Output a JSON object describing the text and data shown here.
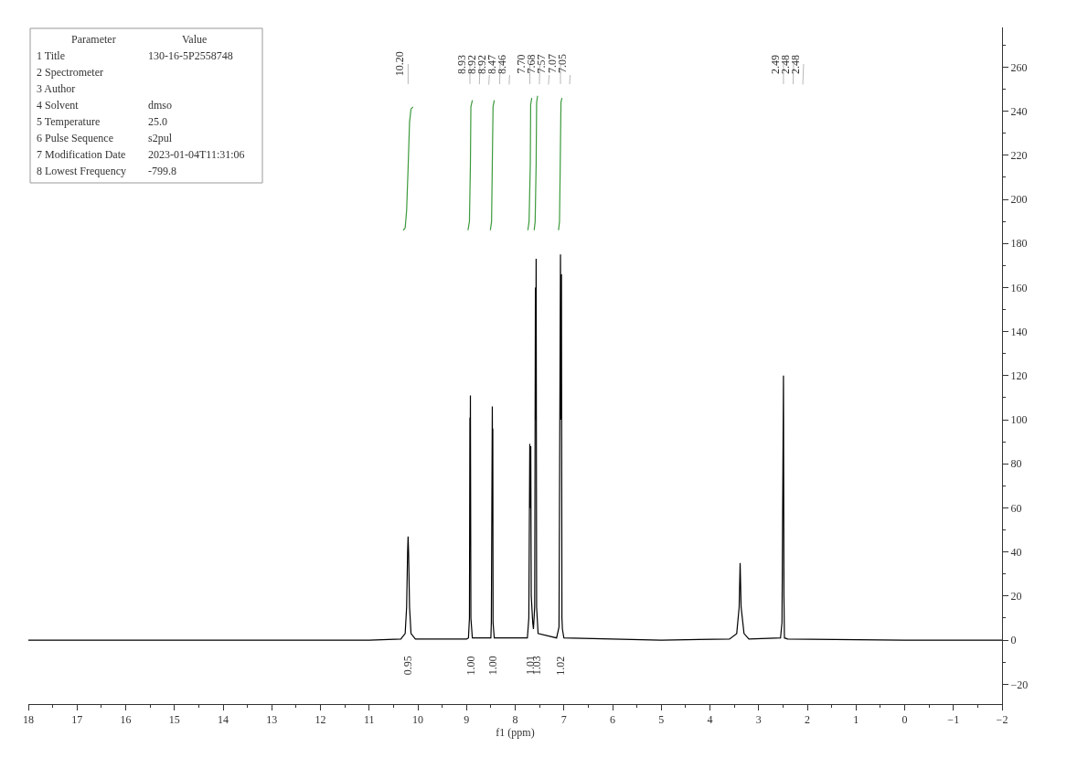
{
  "chart_data": {
    "type": "line",
    "xlabel": "f1 (ppm)",
    "xlim": [
      18,
      -2
    ],
    "xticks": [
      18,
      17,
      16,
      15,
      14,
      13,
      12,
      11,
      10,
      9,
      8,
      7,
      6,
      5,
      4,
      3,
      2,
      1,
      0,
      -1,
      -2
    ],
    "ylim": [
      -29,
      278
    ],
    "yticks": [
      -20,
      0,
      20,
      40,
      60,
      80,
      100,
      120,
      140,
      160,
      180,
      200,
      220,
      240,
      260
    ],
    "grid": false,
    "marker": "none",
    "line_style": "solid",
    "series": [
      {
        "color": "#000000",
        "x": [
          18,
          14,
          11,
          10.35,
          10.26,
          10.23,
          10.21,
          10.2,
          10.19,
          10.17,
          10.14,
          10.05,
          9,
          8.96,
          8.94,
          8.93,
          8.925,
          8.92,
          8.91,
          8.88,
          8.5,
          8.49,
          8.47,
          8.465,
          8.46,
          8.455,
          8.43,
          7.75,
          7.72,
          7.7,
          7.69,
          7.68,
          7.67,
          7.64,
          7.625,
          7.6,
          7.585,
          7.578,
          7.57,
          7.56,
          7.53,
          7.15,
          7.1,
          7.07,
          7.06,
          7.05,
          7.04,
          7.03,
          7,
          5,
          3.6,
          3.45,
          3.4,
          3.38,
          3.36,
          3.3,
          3.2,
          2.55,
          2.52,
          2.49,
          2.48,
          2.47,
          2.4,
          0,
          -2
        ],
        "values": [
          0,
          0,
          0,
          0.5,
          3,
          15,
          40,
          47,
          40,
          15,
          3,
          0.5,
          0.5,
          1,
          10,
          101,
          80,
          111,
          10,
          1,
          1,
          8,
          106,
          70,
          96,
          8,
          1,
          1,
          10,
          89,
          60,
          88,
          20,
          8,
          5,
          15,
          160,
          100,
          173,
          15,
          3,
          1,
          6,
          175,
          100,
          166,
          10,
          5,
          1,
          0,
          0.5,
          3,
          15,
          35,
          15,
          3,
          0.5,
          1,
          8,
          120,
          20,
          1,
          0.5,
          0,
          0
        ]
      },
      {
        "color": "#3c9a3c",
        "x": [
          10.3,
          10.26,
          10.23,
          10.2,
          10.17,
          10.14,
          10.1
        ],
        "values": [
          186,
          187,
          195,
          214,
          235,
          241,
          242
        ]
      },
      {
        "color": "#3c9a3c",
        "x": [
          8.97,
          8.94,
          8.92,
          8.91,
          8.88
        ],
        "values": [
          186,
          190,
          216,
          242,
          245
        ]
      },
      {
        "color": "#3c9a3c",
        "x": [
          8.51,
          8.485,
          8.47,
          8.455,
          8.43
        ],
        "values": [
          186,
          190,
          216,
          242,
          245
        ]
      },
      {
        "color": "#3c9a3c",
        "x": [
          7.74,
          7.715,
          7.69,
          7.682,
          7.66
        ],
        "values": [
          186,
          190,
          216,
          243,
          246
        ]
      },
      {
        "color": "#3c9a3c",
        "x": [
          7.61,
          7.59,
          7.57,
          7.56,
          7.54
        ],
        "values": [
          186,
          190,
          216,
          244,
          247
        ]
      },
      {
        "color": "#3c9a3c",
        "x": [
          7.11,
          7.09,
          7.075,
          7.06,
          7.04
        ],
        "values": [
          186,
          190,
          216,
          244,
          246
        ]
      }
    ],
    "annotations": [
      {
        "text": "10.20",
        "x": 10.2,
        "y": 47
      },
      {
        "text": "8.93",
        "x": 8.93,
        "y": 101
      },
      {
        "text": "8.92",
        "x": 8.92,
        "y": 111
      },
      {
        "text": "8.92",
        "x": 8.92,
        "y": 111
      },
      {
        "text": "8.47",
        "x": 8.47,
        "y": 106
      },
      {
        "text": "8.46",
        "x": 8.46,
        "y": 96
      },
      {
        "text": "7.70",
        "x": 7.7,
        "y": 89
      },
      {
        "text": "7.68",
        "x": 7.68,
        "y": 88
      },
      {
        "text": "7.57",
        "x": 7.57,
        "y": 173
      },
      {
        "text": "7.07",
        "x": 7.07,
        "y": 175
      },
      {
        "text": "7.05",
        "x": 7.05,
        "y": 166
      },
      {
        "text": "2.49",
        "x": 2.49,
        "y": 120
      },
      {
        "text": "2.48",
        "x": 2.48,
        "y": 20
      },
      {
        "text": "2.48",
        "x": 2.48,
        "y": 20
      },
      "0.95",
      "1.00",
      "1.00",
      "1.01",
      "1.03",
      "1.02",
      "Parameter",
      "Value",
      "1 Title",
      "130-16-5P2558748",
      "2 Spectrometer",
      null,
      "3 Author",
      null,
      "4 Solvent",
      "dmso",
      "5 Temperature",
      "25.0",
      "6 Pulse Sequence",
      "s2pul",
      "7 Modification Date",
      "2023-01-04T11:31:06",
      "8 Lowest Frequency",
      "-799.8"
    ]
  }
}
